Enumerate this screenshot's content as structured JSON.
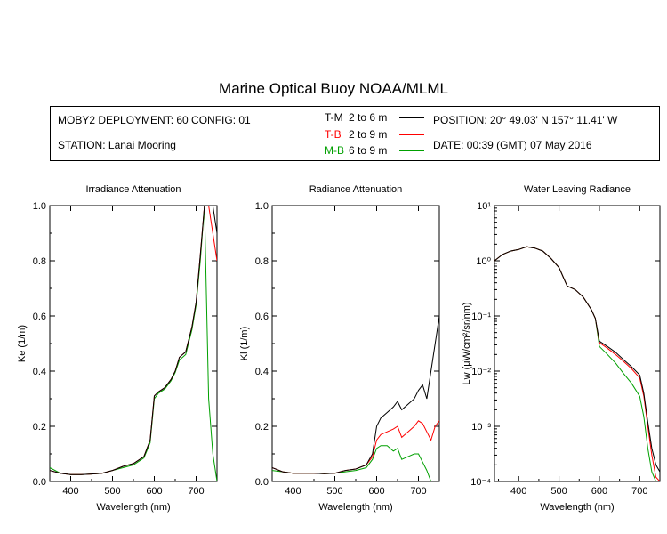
{
  "title": "Marine Optical Buoy NOAA/MLML",
  "info": {
    "deployment": "MOBY2 DEPLOYMENT: 60 CONFIG: 01",
    "station": "STATION: Lanai Mooring",
    "position": "POSITION: 20° 49.03' N   157° 11.41' W",
    "date": "DATE: 00:39 (GMT) 07 May 2016"
  },
  "legend": [
    {
      "code": "T-M",
      "range": "2 to 6  m",
      "color": "#000000"
    },
    {
      "code": "T-B",
      "range": "2 to 9  m",
      "color": "#ff0000"
    },
    {
      "code": "M-B",
      "range": "6 to 9  m",
      "color": "#00a000"
    }
  ],
  "chart_data": [
    {
      "type": "line",
      "title": "Irradiance Attenuation",
      "xlabel": "Wavelength (nm)",
      "ylabel": "Ke  (1/m)",
      "xlim": [
        350,
        750
      ],
      "ylim": [
        0,
        1.0
      ],
      "xticks": [
        "400",
        "500",
        "600",
        "700"
      ],
      "yticks": [
        "0.0",
        "0.2",
        "0.4",
        "0.6",
        "0.8",
        "1.0"
      ],
      "x": [
        350,
        375,
        400,
        425,
        450,
        475,
        500,
        525,
        550,
        575,
        590,
        600,
        610,
        625,
        640,
        650,
        660,
        675,
        690,
        700,
        710,
        720,
        730,
        740,
        750
      ],
      "series": [
        {
          "name": "T-M",
          "color": "#000000",
          "values": [
            0.04,
            0.03,
            0.025,
            0.025,
            0.027,
            0.03,
            0.04,
            0.055,
            0.065,
            0.09,
            0.15,
            0.31,
            0.325,
            0.34,
            0.37,
            0.4,
            0.45,
            0.47,
            0.56,
            0.65,
            0.82,
            1.0,
            1.0,
            1.0,
            0.9
          ]
        },
        {
          "name": "T-B",
          "color": "#ff0000",
          "values": [
            0.04,
            0.03,
            0.025,
            0.025,
            0.027,
            0.03,
            0.04,
            0.055,
            0.065,
            0.09,
            0.15,
            0.31,
            0.325,
            0.34,
            0.37,
            0.4,
            0.45,
            0.47,
            0.56,
            0.65,
            0.82,
            1.0,
            1.0,
            0.9,
            0.8
          ]
        },
        {
          "name": "M-B",
          "color": "#00a000",
          "values": [
            0.05,
            0.03,
            0.025,
            0.025,
            0.027,
            0.03,
            0.04,
            0.05,
            0.06,
            0.085,
            0.14,
            0.3,
            0.32,
            0.335,
            0.365,
            0.395,
            0.44,
            0.46,
            0.55,
            0.64,
            0.8,
            1.0,
            0.3,
            0.1,
            0.0
          ]
        }
      ]
    },
    {
      "type": "line",
      "title": "Radiance Attenuation",
      "xlabel": "Wavelength (nm)",
      "ylabel": "Kl  (1/m)",
      "xlim": [
        350,
        750
      ],
      "ylim": [
        0,
        1.0
      ],
      "xticks": [
        "400",
        "500",
        "600",
        "700"
      ],
      "yticks": [
        "0.0",
        "0.2",
        "0.4",
        "0.6",
        "0.8",
        "1.0"
      ],
      "x": [
        350,
        375,
        400,
        425,
        450,
        475,
        500,
        525,
        550,
        575,
        590,
        600,
        610,
        625,
        640,
        650,
        660,
        675,
        690,
        700,
        710,
        720,
        730,
        740,
        750
      ],
      "series": [
        {
          "name": "T-M",
          "color": "#000000",
          "values": [
            0.05,
            0.035,
            0.03,
            0.03,
            0.03,
            0.028,
            0.03,
            0.04,
            0.045,
            0.06,
            0.1,
            0.2,
            0.23,
            0.25,
            0.27,
            0.29,
            0.26,
            0.28,
            0.3,
            0.33,
            0.35,
            0.3,
            0.4,
            0.5,
            0.6
          ]
        },
        {
          "name": "T-B",
          "color": "#ff0000",
          "values": [
            0.05,
            0.035,
            0.03,
            0.03,
            0.03,
            0.028,
            0.03,
            0.04,
            0.045,
            0.06,
            0.09,
            0.15,
            0.17,
            0.18,
            0.19,
            0.2,
            0.16,
            0.18,
            0.2,
            0.22,
            0.21,
            0.18,
            0.15,
            0.2,
            0.22
          ]
        },
        {
          "name": "M-B",
          "color": "#00a000",
          "values": [
            0.04,
            0.035,
            0.03,
            0.03,
            0.03,
            0.028,
            0.03,
            0.035,
            0.04,
            0.05,
            0.08,
            0.12,
            0.13,
            0.13,
            0.11,
            0.12,
            0.08,
            0.09,
            0.1,
            0.1,
            0.07,
            0.04,
            0.0,
            0.0,
            0.0
          ]
        }
      ]
    },
    {
      "type": "line",
      "title": "Water Leaving Radiance",
      "xlabel": "Wavelength (nm)",
      "ylabel": "Lw  (μW/cm²/sr/nm)",
      "yscale": "log",
      "xlim": [
        340,
        750
      ],
      "ylim": [
        0.0001,
        10
      ],
      "xticks": [
        "400",
        "500",
        "600",
        "700"
      ],
      "yticks": [
        "10⁻⁴",
        "10⁻³",
        "10⁻²",
        "10⁻¹",
        "10⁰",
        "10¹"
      ],
      "x": [
        340,
        360,
        380,
        400,
        420,
        440,
        460,
        480,
        500,
        520,
        540,
        560,
        580,
        590,
        600,
        620,
        640,
        660,
        680,
        700,
        710,
        720,
        730,
        740,
        750
      ],
      "series": [
        {
          "name": "T-M",
          "color": "#000000",
          "values": [
            1.0,
            1.3,
            1.5,
            1.6,
            1.8,
            1.7,
            1.5,
            1.1,
            0.75,
            0.35,
            0.3,
            0.22,
            0.13,
            0.09,
            0.035,
            0.028,
            0.022,
            0.016,
            0.012,
            0.0085,
            0.004,
            0.0012,
            0.0004,
            0.0002,
            0.00015
          ]
        },
        {
          "name": "T-B",
          "color": "#ff0000",
          "values": [
            1.0,
            1.3,
            1.5,
            1.6,
            1.8,
            1.7,
            1.5,
            1.1,
            0.75,
            0.35,
            0.3,
            0.22,
            0.13,
            0.09,
            0.033,
            0.026,
            0.02,
            0.015,
            0.011,
            0.0075,
            0.0035,
            0.001,
            0.0003,
            0.00012,
            0.0001
          ]
        },
        {
          "name": "M-B",
          "color": "#00a000",
          "values": [
            1.0,
            1.3,
            1.5,
            1.6,
            1.8,
            1.7,
            1.5,
            1.1,
            0.75,
            0.35,
            0.3,
            0.22,
            0.13,
            0.09,
            0.028,
            0.02,
            0.014,
            0.009,
            0.006,
            0.0035,
            0.0015,
            0.0004,
            0.00015,
            0.0001,
            0.0001
          ]
        }
      ]
    }
  ]
}
